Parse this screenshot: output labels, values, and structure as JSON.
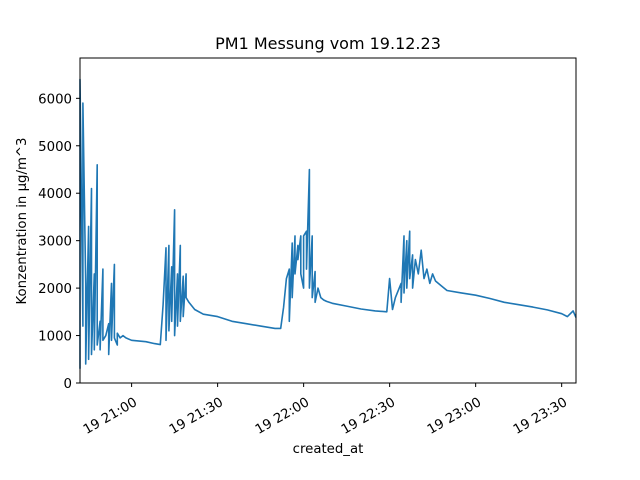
{
  "chart_data": {
    "type": "line",
    "title": "PM1 Messung vom 19.12.23",
    "xlabel": "created_at",
    "ylabel": "Konzentration in µg/m^3",
    "x_start": "19 20:42",
    "x_end": "19 23:35",
    "ylim": [
      0,
      6850
    ],
    "yticks": [
      0,
      1000,
      2000,
      3000,
      4000,
      5000,
      6000
    ],
    "xticks": [
      "19 21:00",
      "19 21:30",
      "19 22:00",
      "19 22:30",
      "19 23:00",
      "19 23:30"
    ],
    "grid": false,
    "color": "#1f77b4",
    "series": [
      {
        "x": [
          "19 20:42",
          "19 20:42",
          "19 20:43",
          "19 20:43",
          "19 20:44",
          "19 20:44",
          "19 20:45",
          "19 20:45",
          "19 20:46",
          "19 20:46",
          "19 20:47",
          "19 20:47",
          "19 20:48",
          "19 20:48",
          "19 20:49",
          "19 20:49",
          "19 20:50",
          "19 20:50",
          "19 20:51",
          "19 20:52",
          "19 20:52",
          "19 20:53",
          "19 20:53",
          "19 20:54",
          "19 20:54",
          "19 20:55",
          "19 20:55",
          "19 20:56",
          "19 20:57",
          "19 20:58",
          "19 21:00",
          "19 21:05",
          "19 21:08",
          "19 21:10",
          "19 21:11",
          "19 21:12",
          "19 21:12",
          "19 21:13",
          "19 21:13",
          "19 21:14",
          "19 21:14",
          "19 21:15",
          "19 21:15",
          "19 21:16",
          "19 21:16",
          "19 21:17",
          "19 21:17",
          "19 21:18",
          "19 21:18",
          "19 21:19",
          "19 21:19",
          "19 21:20",
          "19 21:22",
          "19 21:25",
          "19 21:30",
          "19 21:35",
          "19 21:40",
          "19 21:45",
          "19 21:50",
          "19 21:52",
          "19 21:53",
          "19 21:54",
          "19 21:55",
          "19 21:55",
          "19 21:56",
          "19 21:56",
          "19 21:57",
          "19 21:57",
          "19 21:58",
          "19 21:58",
          "19 21:59",
          "19 21:59",
          "19 22:00",
          "19 22:00",
          "19 22:01",
          "19 22:01",
          "19 22:02",
          "19 22:02",
          "19 22:03",
          "19 22:03",
          "19 22:04",
          "19 22:04",
          "19 22:05",
          "19 22:06",
          "19 22:07",
          "19 22:08",
          "19 22:10",
          "19 22:15",
          "19 22:20",
          "19 22:25",
          "19 22:29",
          "19 22:30",
          "19 22:31",
          "19 22:32",
          "19 22:34",
          "19 22:34",
          "19 22:35",
          "19 22:35",
          "19 22:36",
          "19 22:36",
          "19 22:37",
          "19 22:37",
          "19 22:38",
          "19 22:38",
          "19 22:39",
          "19 22:40",
          "19 22:41",
          "19 22:42",
          "19 22:43",
          "19 22:44",
          "19 22:45",
          "19 22:46",
          "19 22:48",
          "19 22:50",
          "19 22:55",
          "19 23:00",
          "19 23:05",
          "19 23:10",
          "19 23:15",
          "19 23:20",
          "19 23:25",
          "19 23:30",
          "19 23:32",
          "19 23:34",
          "19 23:35"
        ],
        "y": [
          300,
          6400,
          1200,
          5900,
          2100,
          400,
          3300,
          500,
          4100,
          600,
          2300,
          700,
          4600,
          800,
          1300,
          700,
          2400,
          900,
          1000,
          1250,
          600,
          2100,
          900,
          2500,
          950,
          800,
          1050,
          950,
          1000,
          950,
          900,
          870,
          830,
          810,
          1650,
          2850,
          900,
          2900,
          1100,
          2450,
          1300,
          3650,
          1000,
          2300,
          1200,
          2900,
          1300,
          2250,
          1400,
          2300,
          1800,
          1700,
          1550,
          1450,
          1400,
          1300,
          1250,
          1200,
          1150,
          1150,
          1600,
          2200,
          2400,
          1300,
          2950,
          1800,
          3100,
          2300,
          2900,
          2600,
          3100,
          2300,
          2000,
          3100,
          3200,
          2400,
          4500,
          2000,
          3100,
          1800,
          2350,
          1700,
          2000,
          1800,
          1750,
          1720,
          1680,
          1620,
          1560,
          1520,
          1500,
          2200,
          1550,
          1800,
          2100,
          1700,
          3100,
          1900,
          3000,
          2000,
          3200,
          2200,
          2700,
          2000,
          2600,
          2300,
          2800,
          2200,
          2400,
          2100,
          2300,
          2150,
          2050,
          1950,
          1900,
          1850,
          1780,
          1700,
          1650,
          1600,
          1540,
          1460,
          1400,
          1520,
          1380
        ]
      }
    ]
  }
}
